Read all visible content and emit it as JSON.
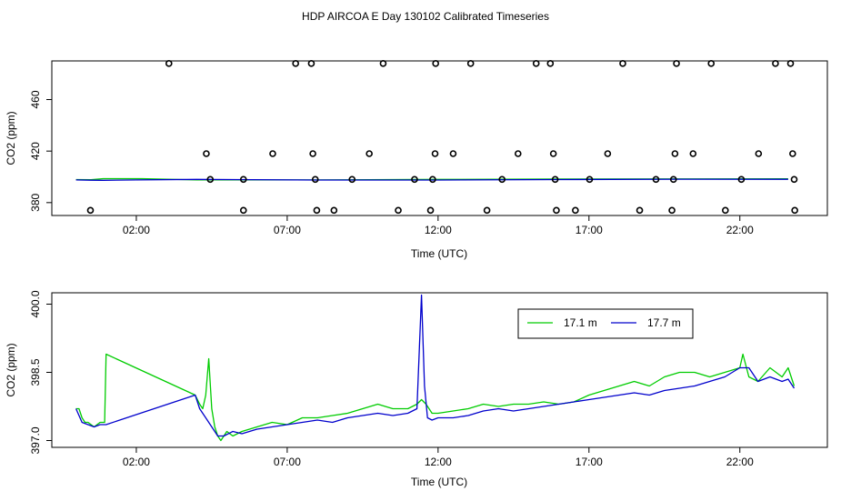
{
  "title": "HDP AIRCOA E  Day 130102  Calibrated Timeseries",
  "chart_data": [
    {
      "type": "scatter",
      "xlabel": "Time (UTC)",
      "ylabel": "CO2 (ppm)",
      "x_ticks": [
        "02:00",
        "07:00",
        "12:00",
        "17:00",
        "22:00"
      ],
      "x_tick_hours": [
        2,
        7,
        12,
        17,
        22
      ],
      "xlim_hours": [
        -0.8,
        24.9
      ],
      "y_ticks": [
        "380",
        "420",
        "460"
      ],
      "y_tick_values": [
        380,
        420,
        460
      ],
      "ylim": [
        370,
        490
      ],
      "grid": false,
      "series": [
        {
          "name": "17.1 m",
          "color": "#00cc00",
          "line": {
            "x": [
              0,
              0.5,
              0.9,
              1.5,
              2.2,
              4.0,
              8.0,
              12.0,
              16.0,
              20.0,
              23.6
            ],
            "y": [
              397.9,
              397.8,
              398.6,
              398.6,
              398.6,
              397.6,
              397.6,
              398.0,
              398.3,
              398.4,
              398.5
            ]
          }
        },
        {
          "name": "17.7 m",
          "color": "#0000cc",
          "line": {
            "x": [
              0,
              0.5,
              0.9,
              2.0,
              4.0,
              8.0,
              12.0,
              16.0,
              20.0,
              23.6
            ],
            "y": [
              397.6,
              397.4,
              397.3,
              397.6,
              398.0,
              397.5,
              397.5,
              397.9,
              398.2,
              398.1
            ]
          }
        }
      ],
      "points": [
        {
          "x": 0.48,
          "y": 374
        },
        {
          "x": 3.08,
          "y": 488
        },
        {
          "x": 4.32,
          "y": 418
        },
        {
          "x": 4.45,
          "y": 398
        },
        {
          "x": 5.55,
          "y": 374
        },
        {
          "x": 5.55,
          "y": 398
        },
        {
          "x": 6.52,
          "y": 418
        },
        {
          "x": 7.28,
          "y": 488
        },
        {
          "x": 7.8,
          "y": 488
        },
        {
          "x": 7.85,
          "y": 418
        },
        {
          "x": 7.93,
          "y": 398
        },
        {
          "x": 7.98,
          "y": 374
        },
        {
          "x": 8.55,
          "y": 374
        },
        {
          "x": 9.15,
          "y": 398
        },
        {
          "x": 9.72,
          "y": 418
        },
        {
          "x": 10.18,
          "y": 488
        },
        {
          "x": 10.68,
          "y": 374
        },
        {
          "x": 11.22,
          "y": 398
        },
        {
          "x": 11.75,
          "y": 374
        },
        {
          "x": 11.82,
          "y": 398
        },
        {
          "x": 11.9,
          "y": 418
        },
        {
          "x": 11.92,
          "y": 488
        },
        {
          "x": 12.5,
          "y": 418
        },
        {
          "x": 13.08,
          "y": 488
        },
        {
          "x": 13.62,
          "y": 374
        },
        {
          "x": 14.12,
          "y": 398
        },
        {
          "x": 14.65,
          "y": 418
        },
        {
          "x": 15.25,
          "y": 488
        },
        {
          "x": 15.72,
          "y": 488
        },
        {
          "x": 15.82,
          "y": 418
        },
        {
          "x": 15.88,
          "y": 398
        },
        {
          "x": 15.92,
          "y": 374
        },
        {
          "x": 16.55,
          "y": 374
        },
        {
          "x": 17.02,
          "y": 398
        },
        {
          "x": 17.62,
          "y": 418
        },
        {
          "x": 18.12,
          "y": 488
        },
        {
          "x": 18.68,
          "y": 374
        },
        {
          "x": 19.22,
          "y": 398
        },
        {
          "x": 19.75,
          "y": 374
        },
        {
          "x": 19.8,
          "y": 398
        },
        {
          "x": 19.85,
          "y": 418
        },
        {
          "x": 19.9,
          "y": 488
        },
        {
          "x": 20.45,
          "y": 418
        },
        {
          "x": 21.05,
          "y": 488
        },
        {
          "x": 21.52,
          "y": 374
        },
        {
          "x": 22.05,
          "y": 398
        },
        {
          "x": 22.62,
          "y": 418
        },
        {
          "x": 23.18,
          "y": 488
        },
        {
          "x": 23.68,
          "y": 488
        },
        {
          "x": 23.75,
          "y": 418
        },
        {
          "x": 23.8,
          "y": 398
        },
        {
          "x": 23.82,
          "y": 374
        }
      ]
    },
    {
      "type": "line",
      "xlabel": "Time (UTC)",
      "ylabel": "CO2 (ppm)",
      "x_ticks": [
        "02:00",
        "07:00",
        "12:00",
        "17:00",
        "22:00"
      ],
      "x_tick_hours": [
        2,
        7,
        12,
        17,
        22
      ],
      "xlim_hours": [
        -0.8,
        24.9
      ],
      "y_ticks": [
        "397.0",
        "398.5",
        "400.0"
      ],
      "y_tick_values": [
        397.0,
        398.5,
        400.0
      ],
      "ylim": [
        396.85,
        400.25
      ],
      "grid": false,
      "legend": {
        "placement": "top-right",
        "entries": [
          "17.1 m",
          "17.7 m"
        ]
      },
      "series": [
        {
          "name": "17.1 m",
          "color": "#00cc00",
          "x": [
            0,
            0.1,
            0.2,
            0.3,
            0.4,
            0.6,
            0.8,
            0.95,
            1.0,
            3.95,
            4.1,
            4.2,
            4.3,
            4.4,
            4.5,
            4.6,
            4.7,
            4.8,
            5.0,
            5.2,
            5.5,
            6.0,
            6.5,
            7.0,
            7.5,
            8.0,
            8.5,
            9.0,
            9.5,
            10.0,
            10.5,
            11.0,
            11.3,
            11.45,
            11.6,
            11.8,
            12.0,
            12.5,
            13.0,
            13.5,
            14.0,
            14.5,
            15.0,
            15.5,
            16.0,
            16.5,
            17.0,
            17.5,
            18.0,
            18.5,
            19.0,
            19.5,
            20.0,
            20.5,
            21.0,
            21.5,
            22.0,
            22.1,
            22.3,
            22.6,
            23.0,
            23.4,
            23.6,
            23.8
          ],
          "y": [
            397.7,
            397.7,
            397.5,
            397.4,
            397.4,
            397.3,
            397.4,
            397.4,
            398.9,
            398.0,
            397.8,
            397.7,
            398.0,
            398.8,
            397.7,
            397.3,
            397.1,
            397.0,
            397.2,
            397.1,
            397.2,
            397.3,
            397.4,
            397.35,
            397.5,
            397.5,
            397.55,
            397.6,
            397.7,
            397.8,
            397.7,
            397.7,
            397.8,
            397.9,
            397.8,
            397.6,
            397.6,
            397.65,
            397.7,
            397.8,
            397.75,
            397.8,
            397.8,
            397.85,
            397.8,
            397.85,
            398.0,
            398.1,
            398.2,
            398.3,
            398.2,
            398.4,
            398.5,
            398.5,
            398.4,
            398.5,
            398.6,
            398.9,
            398.4,
            398.3,
            398.6,
            398.4,
            398.6,
            398.2
          ]
        },
        {
          "name": "17.7 m",
          "color": "#0000cc",
          "x": [
            0,
            0.2,
            0.4,
            0.6,
            0.8,
            1.0,
            3.95,
            4.1,
            4.3,
            4.5,
            4.7,
            4.9,
            5.2,
            5.5,
            6.0,
            6.5,
            7.0,
            7.5,
            8.0,
            8.5,
            9.0,
            9.5,
            10.0,
            10.5,
            11.0,
            11.3,
            11.45,
            11.55,
            11.65,
            11.8,
            12.0,
            12.5,
            13.0,
            13.5,
            14.0,
            14.5,
            15.0,
            15.5,
            16.0,
            16.5,
            17.0,
            17.5,
            18.0,
            18.5,
            19.0,
            19.5,
            20.0,
            20.5,
            21.0,
            21.5,
            22.0,
            22.3,
            22.6,
            23.0,
            23.4,
            23.6,
            23.8
          ],
          "y": [
            397.7,
            397.4,
            397.35,
            397.3,
            397.35,
            397.35,
            398.0,
            397.7,
            397.5,
            397.3,
            397.1,
            397.1,
            397.2,
            397.15,
            397.25,
            397.3,
            397.35,
            397.4,
            397.45,
            397.4,
            397.5,
            397.55,
            397.6,
            397.55,
            397.6,
            397.7,
            400.2,
            398.2,
            397.5,
            397.45,
            397.5,
            397.5,
            397.55,
            397.65,
            397.7,
            397.65,
            397.7,
            397.75,
            397.8,
            397.85,
            397.9,
            397.95,
            398.0,
            398.05,
            398.0,
            398.1,
            398.15,
            398.2,
            398.3,
            398.4,
            398.6,
            398.6,
            398.3,
            398.4,
            398.3,
            398.35,
            398.15
          ]
        }
      ]
    }
  ]
}
